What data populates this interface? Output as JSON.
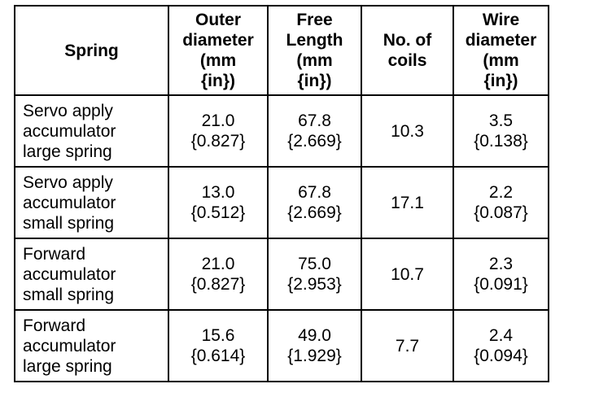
{
  "table": {
    "headers": [
      [
        "Spring"
      ],
      [
        "Outer",
        "diameter",
        "(mm",
        "{in})"
      ],
      [
        "Free",
        "Length",
        "(mm",
        "{in})"
      ],
      [
        "No. of",
        "coils"
      ],
      [
        "Wire",
        "diameter",
        "(mm",
        "{in})"
      ]
    ],
    "rows": [
      {
        "spring": [
          "Servo apply",
          "accumulator",
          "large spring"
        ],
        "outer_diameter": [
          "21.0",
          "{0.827}"
        ],
        "free_length": [
          "67.8",
          "{2.669}"
        ],
        "coils": "10.3",
        "wire_diameter": [
          "3.5",
          "{0.138}"
        ]
      },
      {
        "spring": [
          "Servo apply",
          "accumulator",
          "small spring"
        ],
        "outer_diameter": [
          "13.0",
          "{0.512}"
        ],
        "free_length": [
          "67.8",
          "{2.669}"
        ],
        "coils": "17.1",
        "wire_diameter": [
          "2.2",
          "{0.087}"
        ]
      },
      {
        "spring": [
          "Forward",
          "accumulator",
          "small spring"
        ],
        "outer_diameter": [
          "21.0",
          "{0.827}"
        ],
        "free_length": [
          "75.0",
          "{2.953}"
        ],
        "coils": "10.7",
        "wire_diameter": [
          "2.3",
          "{0.091}"
        ]
      },
      {
        "spring": [
          "Forward",
          "accumulator",
          "large spring"
        ],
        "outer_diameter": [
          "15.6",
          "{0.614}"
        ],
        "free_length": [
          "49.0",
          "{1.929}"
        ],
        "coils": "7.7",
        "wire_diameter": [
          "2.4",
          "{0.094}"
        ]
      }
    ]
  }
}
